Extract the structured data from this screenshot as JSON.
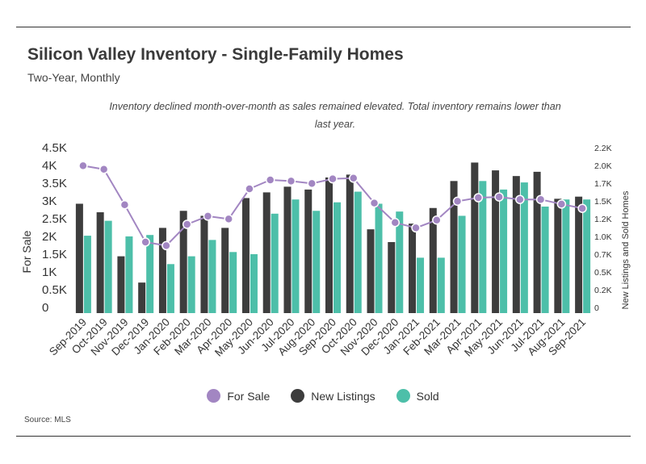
{
  "header": {
    "title": "Silicon Valley Inventory - Single-Family Homes",
    "subtitle": "Two-Year, Monthly",
    "annotation": "Inventory declined month-over-month as sales remained elevated. Total inventory remains lower than last year."
  },
  "source": "Source:  MLS",
  "colors": {
    "for_sale": "#a286c2",
    "new_listings": "#3d3d3d",
    "sold": "#4dbfa9"
  },
  "chart_data": {
    "type": "bar",
    "categories": [
      "Sep-2019",
      "Oct-2019",
      "Nov-2019",
      "Dec-2019",
      "Jan-2020",
      "Feb-2020",
      "Mar-2020",
      "Apr-2020",
      "May-2020",
      "Jun-2020",
      "Jul-2020",
      "Aug-2020",
      "Sep-2020",
      "Oct-2020",
      "Nov-2020",
      "Dec-2020",
      "Jan-2021",
      "Feb-2021",
      "Mar-2021",
      "Apr-2021",
      "May-2021",
      "Jun-2021",
      "Jul-2021",
      "Aug-2021",
      "Sep-2021"
    ],
    "series": [
      {
        "name": "New Listings",
        "axis": "right",
        "type": "bar",
        "values": [
          1540,
          1420,
          800,
          430,
          1200,
          1440,
          1370,
          1200,
          1620,
          1700,
          1780,
          1740,
          1910,
          1950,
          1180,
          1000,
          1260,
          1480,
          1860,
          2120,
          2010,
          1930,
          1990,
          1610,
          1640
        ]
      },
      {
        "name": "Sold",
        "axis": "right",
        "type": "bar",
        "values": [
          1090,
          1300,
          1080,
          1100,
          690,
          800,
          1030,
          860,
          830,
          1400,
          1600,
          1440,
          1560,
          1710,
          1540,
          1430,
          780,
          780,
          1370,
          1860,
          1740,
          1840,
          1500,
          1600,
          1600
        ]
      },
      {
        "name": "For Sale",
        "axis": "left",
        "type": "line",
        "values": [
          4150,
          4050,
          3050,
          2000,
          1900,
          2500,
          2730,
          2650,
          3500,
          3750,
          3720,
          3650,
          3780,
          3800,
          3100,
          2550,
          2400,
          2620,
          3150,
          3250,
          3270,
          3200,
          3200,
          3070,
          2950
        ]
      }
    ],
    "left_axis": {
      "label": "For Sale",
      "ticks": [
        "0",
        "0.5K",
        "1K",
        "1.5K",
        "2K",
        "2.5K",
        "3K",
        "3.5K",
        "4K",
        "4.5K"
      ],
      "ylim": [
        0,
        4500
      ]
    },
    "right_axis": {
      "label": "New Listings and Sold Homes",
      "ticks": [
        "0",
        "0.2K",
        "0.5K",
        "0.7K",
        "1.0K",
        "1.2K",
        "1.5K",
        "1.7K",
        "2.0K",
        "2.2K"
      ],
      "ylim": [
        0,
        2250
      ]
    },
    "legend": [
      "For Sale",
      "New Listings",
      "Sold"
    ],
    "legend_position": "bottom",
    "grid": false
  }
}
